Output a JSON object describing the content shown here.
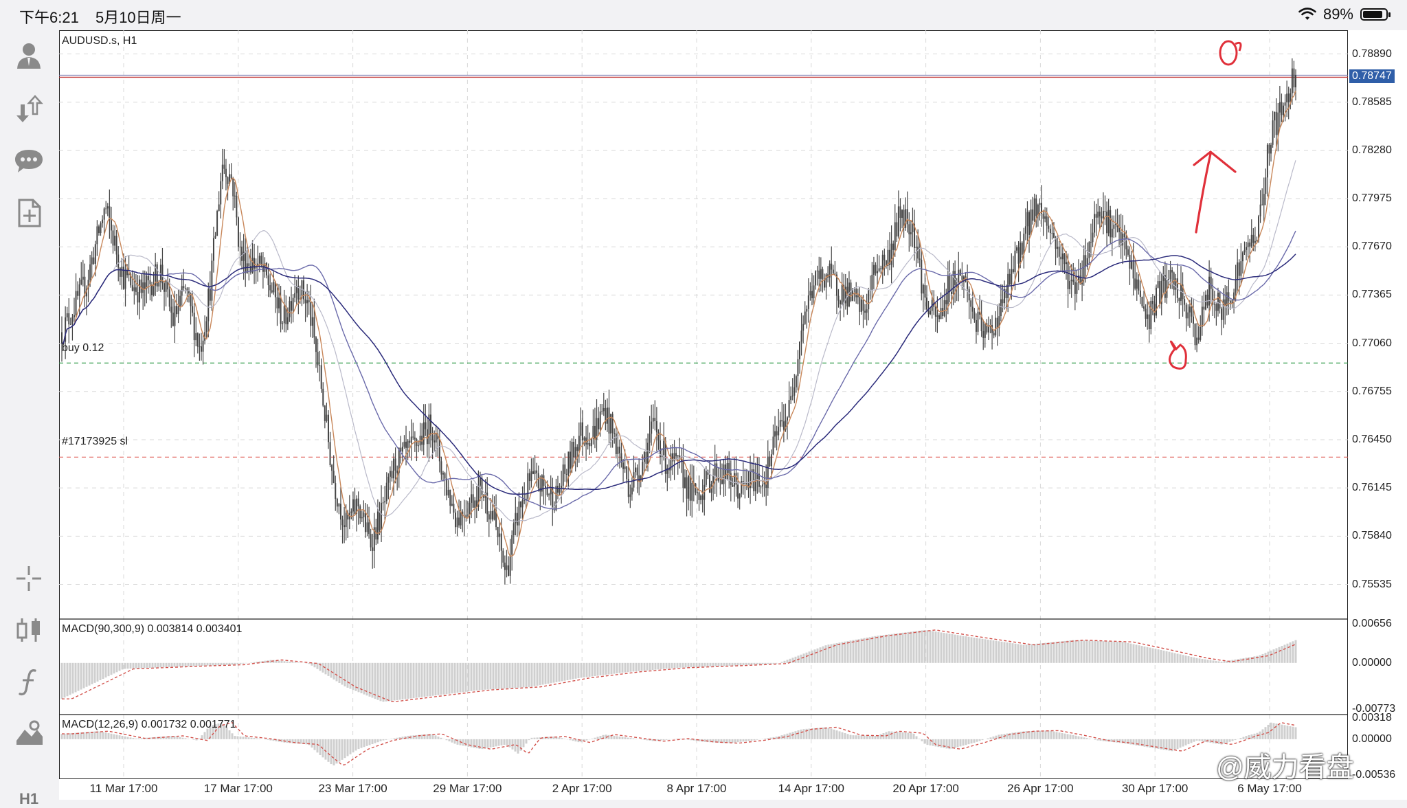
{
  "status_bar": {
    "time": "下午6:21",
    "date": "5月10日周一",
    "battery": "89%",
    "battery_level": 0.89
  },
  "sidebar": {
    "icons": [
      "account-icon",
      "trade-icon",
      "chat-icon",
      "new-order-icon",
      "crosshair-icon",
      "chart-type-icon",
      "indicator-icon",
      "objects-icon"
    ],
    "timeframe": "H1"
  },
  "chart": {
    "symbol_label": "AUDUSD.s, H1",
    "buy_label": "buy 0.12",
    "sl_label": "#17173925 sl",
    "buy_price": 0.76935,
    "sl_price": 0.7634,
    "current_price": 0.78747,
    "y_ticks": [
      "0.78890",
      "0.78585",
      "0.78280",
      "0.77975",
      "0.77670",
      "0.77365",
      "0.77060",
      "0.76755",
      "0.76450",
      "0.76145",
      "0.75840",
      "0.75535"
    ],
    "current_price_label": "0.78747",
    "x_ticks": [
      "11 Mar 17:00",
      "17 Mar 17:00",
      "23 Mar 17:00",
      "29 Mar 17:00",
      "2 Apr 17:00",
      "8 Apr 17:00",
      "14 Apr 17:00",
      "20 Apr 17:00",
      "26 Apr 17:00",
      "30 Apr 17:00",
      "6 May 17:00"
    ],
    "colors": {
      "candle": "#444444",
      "fast_ma": "#c8875a",
      "ma_light": "#b9b9c9",
      "ma_blue": "#6a6aaa",
      "ma_navy": "#2a2a7a",
      "buy_line": "#2e9a48",
      "sl_line": "#e0605a",
      "price_line": "#c43a3a",
      "annotation": "#e0303a"
    },
    "price_path": [
      [
        0,
        0.7713
      ],
      [
        0.02,
        0.7745
      ],
      [
        0.035,
        0.7792
      ],
      [
        0.05,
        0.7748
      ],
      [
        0.065,
        0.7738
      ],
      [
        0.08,
        0.7752
      ],
      [
        0.09,
        0.772
      ],
      [
        0.1,
        0.774
      ],
      [
        0.112,
        0.7702
      ],
      [
        0.12,
        0.774
      ],
      [
        0.13,
        0.782
      ],
      [
        0.138,
        0.781
      ],
      [
        0.145,
        0.776
      ],
      [
        0.16,
        0.7755
      ],
      [
        0.17,
        0.774
      ],
      [
        0.18,
        0.772
      ],
      [
        0.19,
        0.7745
      ],
      [
        0.2,
        0.773
      ],
      [
        0.21,
        0.768
      ],
      [
        0.22,
        0.762
      ],
      [
        0.23,
        0.759
      ],
      [
        0.24,
        0.7605
      ],
      [
        0.25,
        0.758
      ],
      [
        0.26,
        0.76
      ],
      [
        0.27,
        0.763
      ],
      [
        0.285,
        0.764
      ],
      [
        0.3,
        0.7655
      ],
      [
        0.31,
        0.762
      ],
      [
        0.32,
        0.7595
      ],
      [
        0.33,
        0.7605
      ],
      [
        0.34,
        0.7615
      ],
      [
        0.35,
        0.7595
      ],
      [
        0.36,
        0.756
      ],
      [
        0.37,
        0.76
      ],
      [
        0.38,
        0.762
      ],
      [
        0.39,
        0.7615
      ],
      [
        0.4,
        0.7608
      ],
      [
        0.41,
        0.7628
      ],
      [
        0.42,
        0.765
      ],
      [
        0.43,
        0.7648
      ],
      [
        0.44,
        0.7665
      ],
      [
        0.45,
        0.764
      ],
      [
        0.46,
        0.7615
      ],
      [
        0.47,
        0.763
      ],
      [
        0.48,
        0.7655
      ],
      [
        0.49,
        0.763
      ],
      [
        0.5,
        0.7628
      ],
      [
        0.51,
        0.761
      ],
      [
        0.52,
        0.7615
      ],
      [
        0.53,
        0.7625
      ],
      [
        0.54,
        0.7622
      ],
      [
        0.55,
        0.7612
      ],
      [
        0.56,
        0.762
      ],
      [
        0.57,
        0.762
      ],
      [
        0.58,
        0.765
      ],
      [
        0.59,
        0.7665
      ],
      [
        0.6,
        0.772
      ],
      [
        0.61,
        0.7745
      ],
      [
        0.62,
        0.775
      ],
      [
        0.63,
        0.774
      ],
      [
        0.64,
        0.7735
      ],
      [
        0.65,
        0.7725
      ],
      [
        0.66,
        0.7755
      ],
      [
        0.67,
        0.776
      ],
      [
        0.68,
        0.779
      ],
      [
        0.69,
        0.778
      ],
      [
        0.7,
        0.773
      ],
      [
        0.71,
        0.772
      ],
      [
        0.72,
        0.7745
      ],
      [
        0.73,
        0.775
      ],
      [
        0.74,
        0.772
      ],
      [
        0.75,
        0.771
      ],
      [
        0.76,
        0.7725
      ],
      [
        0.77,
        0.775
      ],
      [
        0.78,
        0.7775
      ],
      [
        0.79,
        0.7795
      ],
      [
        0.8,
        0.778
      ],
      [
        0.81,
        0.776
      ],
      [
        0.82,
        0.774
      ],
      [
        0.83,
        0.776
      ],
      [
        0.84,
        0.7795
      ],
      [
        0.85,
        0.778
      ],
      [
        0.86,
        0.777
      ],
      [
        0.87,
        0.7745
      ],
      [
        0.88,
        0.772
      ],
      [
        0.89,
        0.774
      ],
      [
        0.9,
        0.7745
      ],
      [
        0.91,
        0.773
      ],
      [
        0.92,
        0.771
      ],
      [
        0.93,
        0.774
      ],
      [
        0.94,
        0.7725
      ],
      [
        0.95,
        0.7745
      ],
      [
        0.96,
        0.7765
      ],
      [
        0.97,
        0.778
      ],
      [
        0.98,
        0.784
      ],
      [
        0.99,
        0.7855
      ],
      [
        1.0,
        0.788
      ]
    ],
    "macd1": {
      "label": "MACD(90,300,9) 0.003814 0.003401",
      "y_ticks": [
        "0.00656",
        "0.00000",
        "-0.00773"
      ],
      "path": [
        [
          0,
          -0.006
        ],
        [
          0.05,
          -0.001
        ],
        [
          0.11,
          -0.0005
        ],
        [
          0.14,
          -0.0003
        ],
        [
          0.17,
          0.0005
        ],
        [
          0.2,
          -0.0001
        ],
        [
          0.23,
          -0.004
        ],
        [
          0.26,
          -0.0065
        ],
        [
          0.3,
          -0.0055
        ],
        [
          0.34,
          -0.0045
        ],
        [
          0.38,
          -0.004
        ],
        [
          0.42,
          -0.0025
        ],
        [
          0.46,
          -0.0015
        ],
        [
          0.5,
          -0.0008
        ],
        [
          0.55,
          -0.0004
        ],
        [
          0.58,
          -0.0001
        ],
        [
          0.62,
          0.003
        ],
        [
          0.66,
          0.0045
        ],
        [
          0.7,
          0.0055
        ],
        [
          0.74,
          0.0042
        ],
        [
          0.78,
          0.003
        ],
        [
          0.82,
          0.0038
        ],
        [
          0.86,
          0.0035
        ],
        [
          0.89,
          0.0022
        ],
        [
          0.92,
          0.0008
        ],
        [
          0.94,
          0.0002
        ],
        [
          0.97,
          0.0012
        ],
        [
          1.0,
          0.0038
        ]
      ]
    },
    "macd2": {
      "label": "MACD(12,26,9) 0.001732 0.001771",
      "y_ticks": [
        "0.00318",
        "0.00000",
        "-0.00536"
      ],
      "path": [
        [
          0,
          0.0008
        ],
        [
          0.03,
          0.0012
        ],
        [
          0.06,
          0.0001
        ],
        [
          0.09,
          0.0005
        ],
        [
          0.11,
          -0.0002
        ],
        [
          0.12,
          0.002
        ],
        [
          0.13,
          0.0025
        ],
        [
          0.14,
          0.0005
        ],
        [
          0.16,
          0.0001
        ],
        [
          0.18,
          -0.0005
        ],
        [
          0.2,
          -0.0008
        ],
        [
          0.21,
          -0.0025
        ],
        [
          0.22,
          -0.004
        ],
        [
          0.24,
          -0.0015
        ],
        [
          0.26,
          -0.0002
        ],
        [
          0.28,
          0.0005
        ],
        [
          0.3,
          0.0008
        ],
        [
          0.32,
          -0.0008
        ],
        [
          0.34,
          -0.0015
        ],
        [
          0.36,
          -0.0008
        ],
        [
          0.37,
          -0.0022
        ],
        [
          0.38,
          0.0002
        ],
        [
          0.4,
          0.0004
        ],
        [
          0.42,
          -0.0005
        ],
        [
          0.44,
          0.0007
        ],
        [
          0.46,
          0.0002
        ],
        [
          0.48,
          -0.0003
        ],
        [
          0.5,
          0.0001
        ],
        [
          0.52,
          -0.0004
        ],
        [
          0.54,
          -0.0006
        ],
        [
          0.56,
          -0.0002
        ],
        [
          0.58,
          0.0004
        ],
        [
          0.6,
          0.0015
        ],
        [
          0.62,
          0.0018
        ],
        [
          0.64,
          0.0006
        ],
        [
          0.66,
          0.0005
        ],
        [
          0.67,
          0.0012
        ],
        [
          0.69,
          0.0009
        ],
        [
          0.7,
          -0.0008
        ],
        [
          0.72,
          -0.0015
        ],
        [
          0.74,
          -0.0005
        ],
        [
          0.76,
          0.0007
        ],
        [
          0.78,
          0.0012
        ],
        [
          0.8,
          0.0013
        ],
        [
          0.82,
          0.0006
        ],
        [
          0.84,
          -0.0002
        ],
        [
          0.86,
          -0.0006
        ],
        [
          0.88,
          -0.0012
        ],
        [
          0.9,
          -0.0018
        ],
        [
          0.92,
          -0.0002
        ],
        [
          0.94,
          -0.0008
        ],
        [
          0.95,
          -0.0002
        ],
        [
          0.96,
          0.0005
        ],
        [
          0.97,
          0.001
        ],
        [
          0.98,
          0.0025
        ],
        [
          1.0,
          0.0018
        ]
      ]
    }
  },
  "watermark": "@威力看盘"
}
